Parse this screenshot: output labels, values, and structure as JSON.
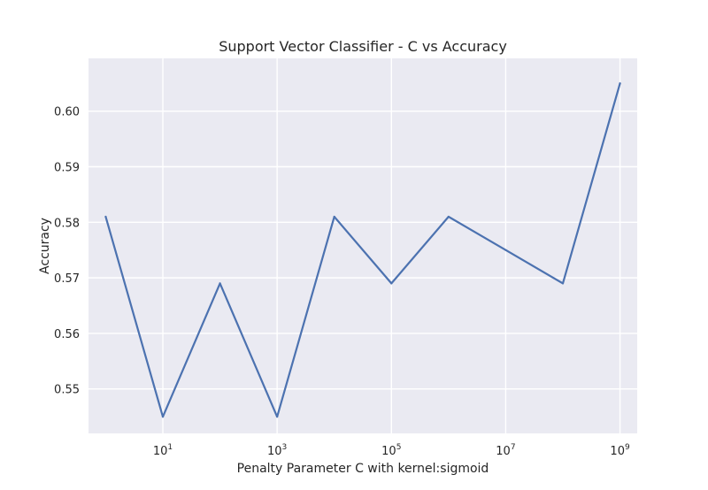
{
  "chart_data": {
    "type": "line",
    "title": "Support Vector Classifier - C vs Accuracy",
    "xlabel": "Penalty Parameter C with kernel:sigmoid",
    "ylabel": "Accuracy",
    "xscale": "log",
    "xlim": [
      0.5,
      2000000000
    ],
    "ylim": [
      0.542,
      0.6095
    ],
    "grid": true,
    "legend": "none",
    "xticks": [
      {
        "value": 10,
        "base": "10",
        "exp": "1"
      },
      {
        "value": 1000,
        "base": "10",
        "exp": "3"
      },
      {
        "value": 100000,
        "base": "10",
        "exp": "5"
      },
      {
        "value": 10000000,
        "base": "10",
        "exp": "7"
      },
      {
        "value": 1000000000,
        "base": "10",
        "exp": "9"
      }
    ],
    "yticks": [
      {
        "value": 0.55,
        "label": "0.55"
      },
      {
        "value": 0.56,
        "label": "0.56"
      },
      {
        "value": 0.57,
        "label": "0.57"
      },
      {
        "value": 0.58,
        "label": "0.58"
      },
      {
        "value": 0.59,
        "label": "0.59"
      },
      {
        "value": 0.6,
        "label": "0.60"
      }
    ],
    "series": [
      {
        "x": [
          1,
          10,
          100,
          1000,
          10000,
          100000,
          1000000,
          10000000,
          100000000,
          1000000000
        ],
        "y": [
          0.581,
          0.545,
          0.569,
          0.545,
          0.581,
          0.569,
          0.581,
          0.575,
          0.569,
          0.605
        ],
        "color": "#4c72b0"
      }
    ],
    "colors": {
      "plot_background": "#eaeaf2",
      "grid": "#ffffff",
      "line": "#4c72b0"
    }
  }
}
